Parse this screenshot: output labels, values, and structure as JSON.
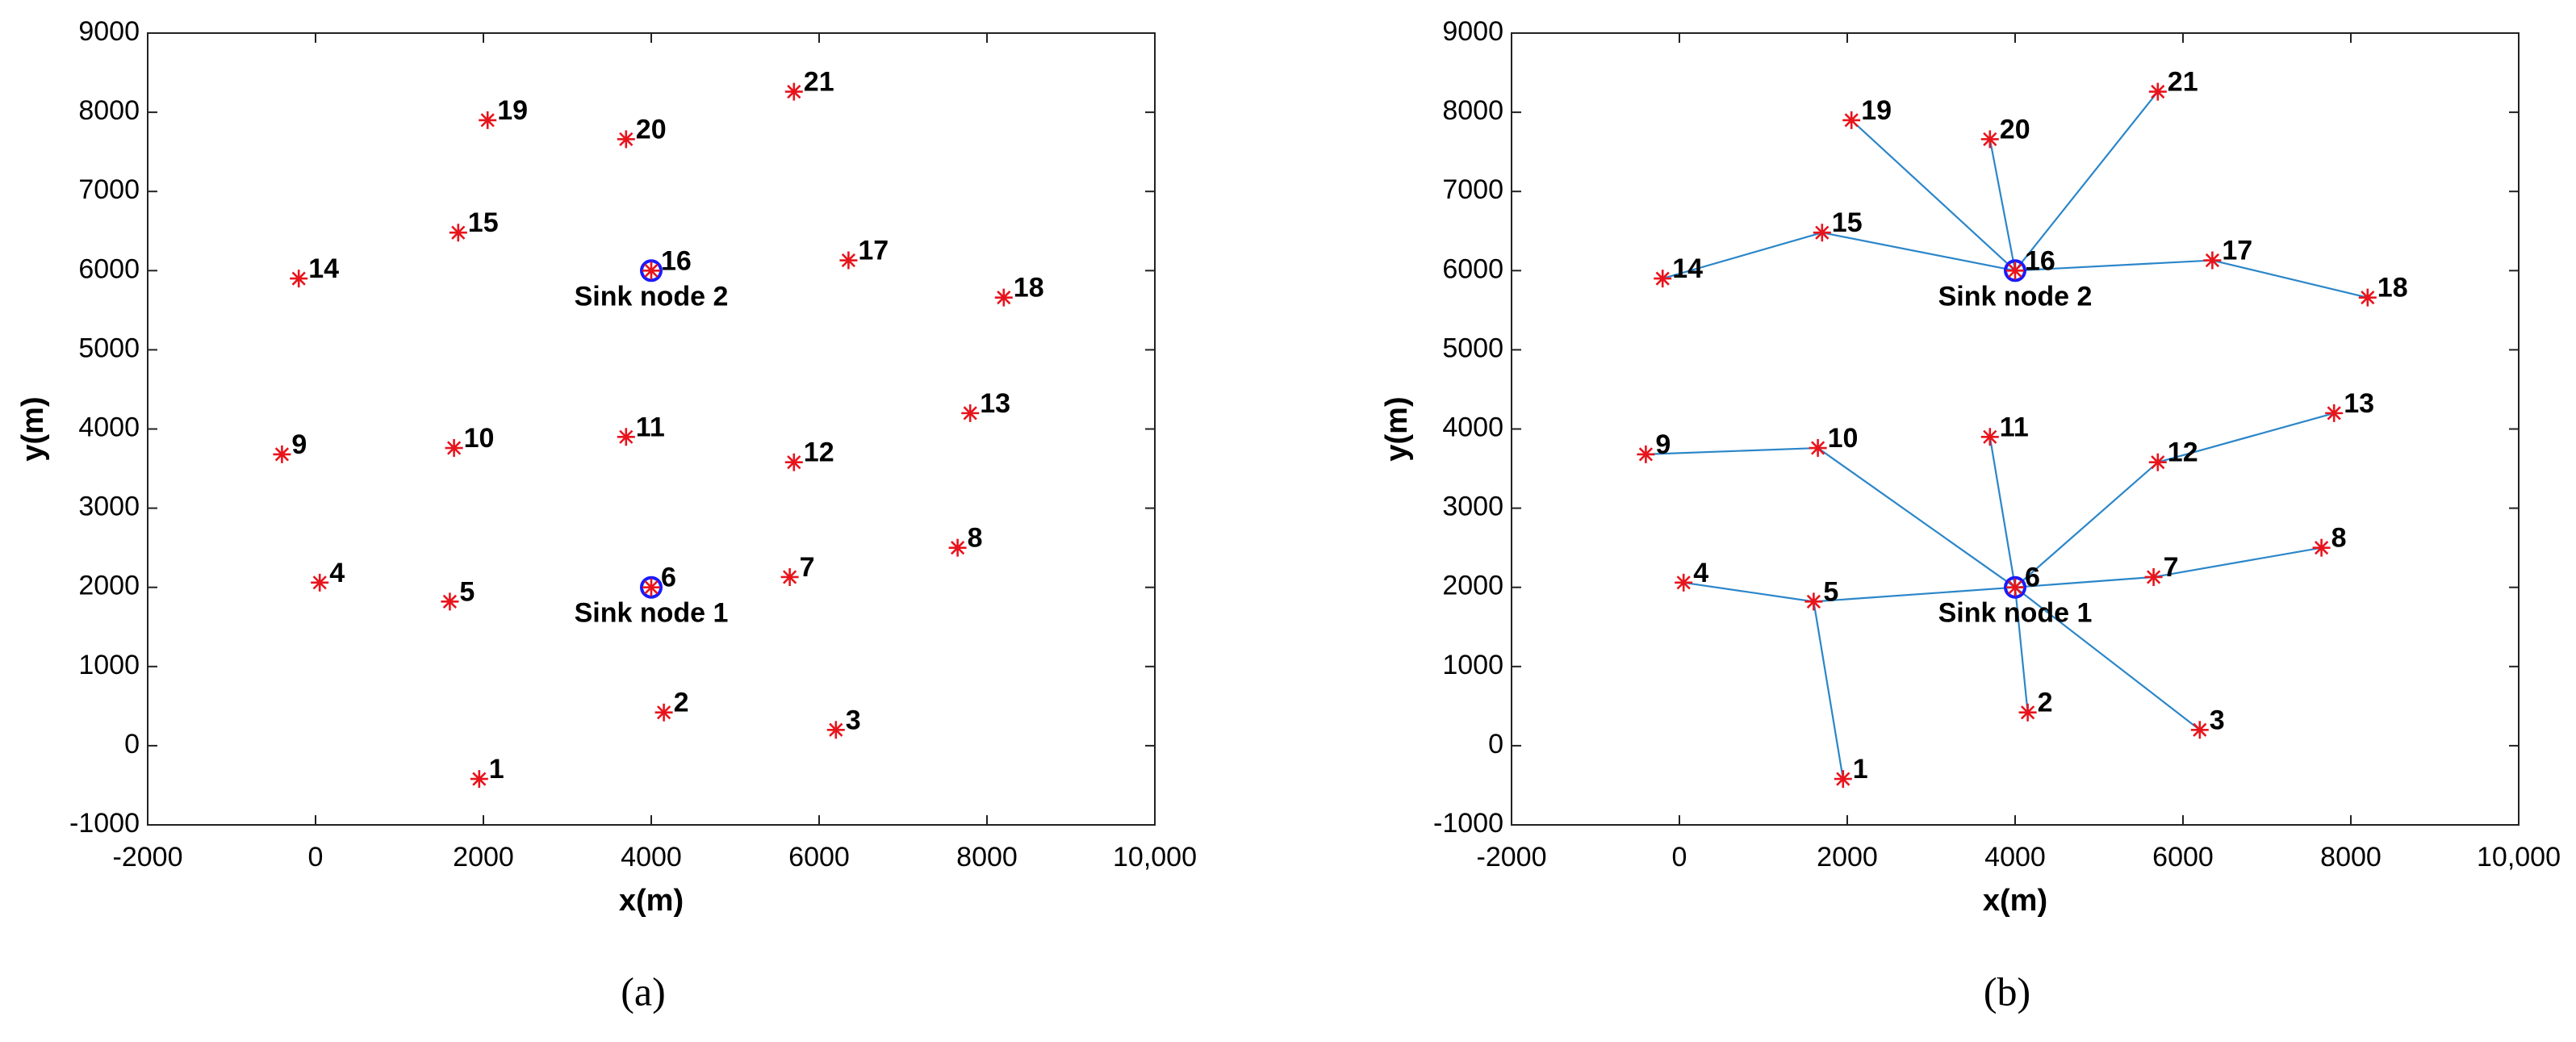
{
  "chart_data": [
    {
      "type": "scatter",
      "subplot_label": "(a)",
      "xlabel": "x(m)",
      "ylabel": "y(m)",
      "xlim": [
        -2000,
        10000
      ],
      "ylim": [
        -1000,
        9000
      ],
      "xticks": [
        -2000,
        0,
        2000,
        4000,
        6000,
        8000,
        {
          "value": 10000,
          "label": "10,000"
        }
      ],
      "yticks": [
        -1000,
        0,
        1000,
        2000,
        3000,
        4000,
        5000,
        6000,
        7000,
        8000,
        9000
      ],
      "color": "#e8141c",
      "sink_color": "#1a1aff",
      "labels": [
        "1",
        "2",
        "3",
        "4",
        "5",
        "6",
        "7",
        "8",
        "9",
        "10",
        "11",
        "12",
        "13",
        "14",
        "15",
        "16",
        "17",
        "18",
        "19",
        "20",
        "21"
      ],
      "x": [
        1950,
        4150,
        6200,
        50,
        1600,
        4000,
        5650,
        7650,
        -400,
        1650,
        3700,
        5700,
        7800,
        -200,
        1700,
        4000,
        6350,
        8200,
        2050,
        3700,
        5700
      ],
      "y": [
        -420,
        420,
        200,
        2060,
        1820,
        2000,
        2130,
        2500,
        3680,
        3760,
        3900,
        3580,
        4200,
        5900,
        6480,
        6000,
        6130,
        5660,
        7900,
        7660,
        8260
      ],
      "sinks": [
        {
          "node": "6",
          "label": "Sink node 1"
        },
        {
          "node": "16",
          "label": "Sink node 2"
        }
      ]
    },
    {
      "type": "scatter",
      "subplot_label": "(b)",
      "xlabel": "x(m)",
      "ylabel": "y(m)",
      "xlim": [
        -2000,
        10000
      ],
      "ylim": [
        -1000,
        9000
      ],
      "xticks": [
        -2000,
        0,
        2000,
        4000,
        6000,
        8000,
        {
          "value": 10000,
          "label": "10,000"
        }
      ],
      "yticks": [
        -1000,
        0,
        1000,
        2000,
        3000,
        4000,
        5000,
        6000,
        7000,
        8000,
        9000
      ],
      "color": "#e8141c",
      "sink_color": "#1a1aff",
      "edge_color": "#2b86c9",
      "labels": [
        "1",
        "2",
        "3",
        "4",
        "5",
        "6",
        "7",
        "8",
        "9",
        "10",
        "11",
        "12",
        "13",
        "14",
        "15",
        "16",
        "17",
        "18",
        "19",
        "20",
        "21"
      ],
      "x": [
        1950,
        4150,
        6200,
        50,
        1600,
        4000,
        5650,
        7650,
        -400,
        1650,
        3700,
        5700,
        7800,
        -200,
        1700,
        4000,
        6350,
        8200,
        2050,
        3700,
        5700
      ],
      "y": [
        -420,
        420,
        200,
        2060,
        1820,
        2000,
        2130,
        2500,
        3680,
        3760,
        3900,
        3580,
        4200,
        5900,
        6480,
        6000,
        6130,
        5660,
        7900,
        7660,
        8260
      ],
      "sinks": [
        {
          "node": "6",
          "label": "Sink node 1"
        },
        {
          "node": "16",
          "label": "Sink node 2"
        }
      ],
      "edges": [
        [
          "16",
          "15"
        ],
        [
          "15",
          "14"
        ],
        [
          "16",
          "19"
        ],
        [
          "16",
          "20"
        ],
        [
          "16",
          "21"
        ],
        [
          "16",
          "17"
        ],
        [
          "17",
          "18"
        ],
        [
          "6",
          "10"
        ],
        [
          "10",
          "9"
        ],
        [
          "6",
          "11"
        ],
        [
          "6",
          "12"
        ],
        [
          "12",
          "13"
        ],
        [
          "6",
          "7"
        ],
        [
          "7",
          "8"
        ],
        [
          "6",
          "5"
        ],
        [
          "5",
          "4"
        ],
        [
          "5",
          "1"
        ],
        [
          "6",
          "2"
        ],
        [
          "6",
          "3"
        ]
      ]
    }
  ]
}
